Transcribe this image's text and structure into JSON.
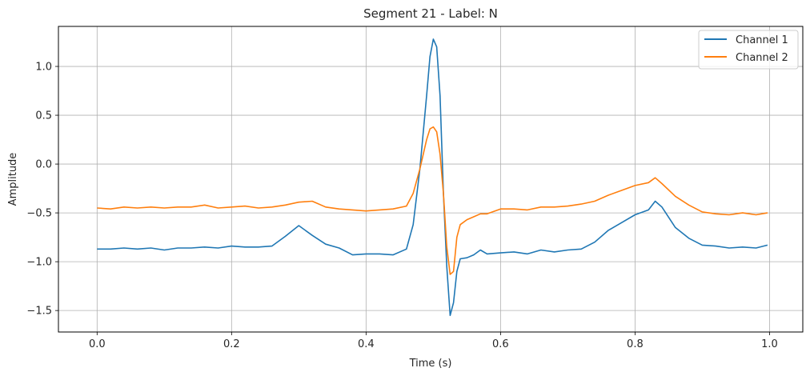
{
  "chart_data": {
    "type": "line",
    "title": "Segment 21 - Label: N",
    "xlabel": "Time (s)",
    "ylabel": "Amplitude",
    "xlim": [
      -0.0575,
      1.0495
    ],
    "ylim": [
      -1.72,
      1.41
    ],
    "xticks": [
      0.0,
      0.2,
      0.4,
      0.6,
      0.8,
      1.0
    ],
    "xtick_labels": [
      "0.0",
      "0.2",
      "0.4",
      "0.6",
      "0.8",
      "1.0"
    ],
    "yticks": [
      -1.5,
      -1.0,
      -0.5,
      0.0,
      0.5,
      1.0
    ],
    "ytick_labels": [
      "−1.5",
      "−1.0",
      "−0.5",
      "0.0",
      "0.5",
      "1.0"
    ],
    "grid": true,
    "legend_position": "top-right",
    "series": [
      {
        "name": "Channel 1",
        "color": "#1f77b4",
        "x": [
          0.0,
          0.02,
          0.04,
          0.06,
          0.08,
          0.1,
          0.12,
          0.14,
          0.16,
          0.18,
          0.2,
          0.22,
          0.24,
          0.26,
          0.28,
          0.3,
          0.32,
          0.34,
          0.36,
          0.38,
          0.4,
          0.42,
          0.44,
          0.46,
          0.47,
          0.48,
          0.49,
          0.495,
          0.5,
          0.505,
          0.51,
          0.515,
          0.52,
          0.525,
          0.53,
          0.535,
          0.54,
          0.55,
          0.56,
          0.57,
          0.58,
          0.6,
          0.62,
          0.64,
          0.66,
          0.68,
          0.7,
          0.72,
          0.74,
          0.76,
          0.78,
          0.8,
          0.82,
          0.83,
          0.84,
          0.86,
          0.88,
          0.9,
          0.92,
          0.94,
          0.96,
          0.98,
          0.997
        ],
        "y": [
          -0.87,
          -0.87,
          -0.86,
          -0.87,
          -0.86,
          -0.88,
          -0.86,
          -0.86,
          -0.85,
          -0.86,
          -0.84,
          -0.85,
          -0.85,
          -0.84,
          -0.74,
          -0.63,
          -0.73,
          -0.82,
          -0.86,
          -0.93,
          -0.92,
          -0.92,
          -0.93,
          -0.87,
          -0.62,
          -0.05,
          0.7,
          1.1,
          1.28,
          1.2,
          0.7,
          -0.3,
          -1.05,
          -1.55,
          -1.42,
          -1.1,
          -0.97,
          -0.96,
          -0.93,
          -0.88,
          -0.92,
          -0.91,
          -0.9,
          -0.92,
          -0.88,
          -0.9,
          -0.88,
          -0.87,
          -0.8,
          -0.68,
          -0.6,
          -0.52,
          -0.47,
          -0.38,
          -0.44,
          -0.65,
          -0.76,
          -0.83,
          -0.84,
          -0.86,
          -0.85,
          -0.86,
          -0.83
        ]
      },
      {
        "name": "Channel 2",
        "color": "#ff7f0e",
        "x": [
          0.0,
          0.02,
          0.04,
          0.06,
          0.08,
          0.1,
          0.12,
          0.14,
          0.16,
          0.18,
          0.2,
          0.22,
          0.24,
          0.26,
          0.28,
          0.3,
          0.32,
          0.34,
          0.36,
          0.38,
          0.4,
          0.42,
          0.44,
          0.46,
          0.47,
          0.48,
          0.49,
          0.495,
          0.5,
          0.505,
          0.51,
          0.515,
          0.52,
          0.525,
          0.53,
          0.535,
          0.54,
          0.55,
          0.56,
          0.57,
          0.58,
          0.6,
          0.62,
          0.64,
          0.66,
          0.68,
          0.7,
          0.72,
          0.74,
          0.76,
          0.78,
          0.8,
          0.82,
          0.83,
          0.84,
          0.86,
          0.88,
          0.9,
          0.92,
          0.94,
          0.96,
          0.98,
          0.997
        ],
        "y": [
          -0.45,
          -0.46,
          -0.44,
          -0.45,
          -0.44,
          -0.45,
          -0.44,
          -0.44,
          -0.42,
          -0.45,
          -0.44,
          -0.43,
          -0.45,
          -0.44,
          -0.42,
          -0.39,
          -0.38,
          -0.44,
          -0.46,
          -0.47,
          -0.48,
          -0.47,
          -0.46,
          -0.43,
          -0.3,
          -0.05,
          0.25,
          0.36,
          0.38,
          0.33,
          0.1,
          -0.3,
          -0.85,
          -1.13,
          -1.1,
          -0.75,
          -0.62,
          -0.57,
          -0.54,
          -0.51,
          -0.51,
          -0.46,
          -0.46,
          -0.47,
          -0.44,
          -0.44,
          -0.43,
          -0.41,
          -0.38,
          -0.32,
          -0.27,
          -0.22,
          -0.19,
          -0.14,
          -0.2,
          -0.33,
          -0.42,
          -0.49,
          -0.51,
          -0.52,
          -0.5,
          -0.52,
          -0.5
        ]
      }
    ]
  }
}
